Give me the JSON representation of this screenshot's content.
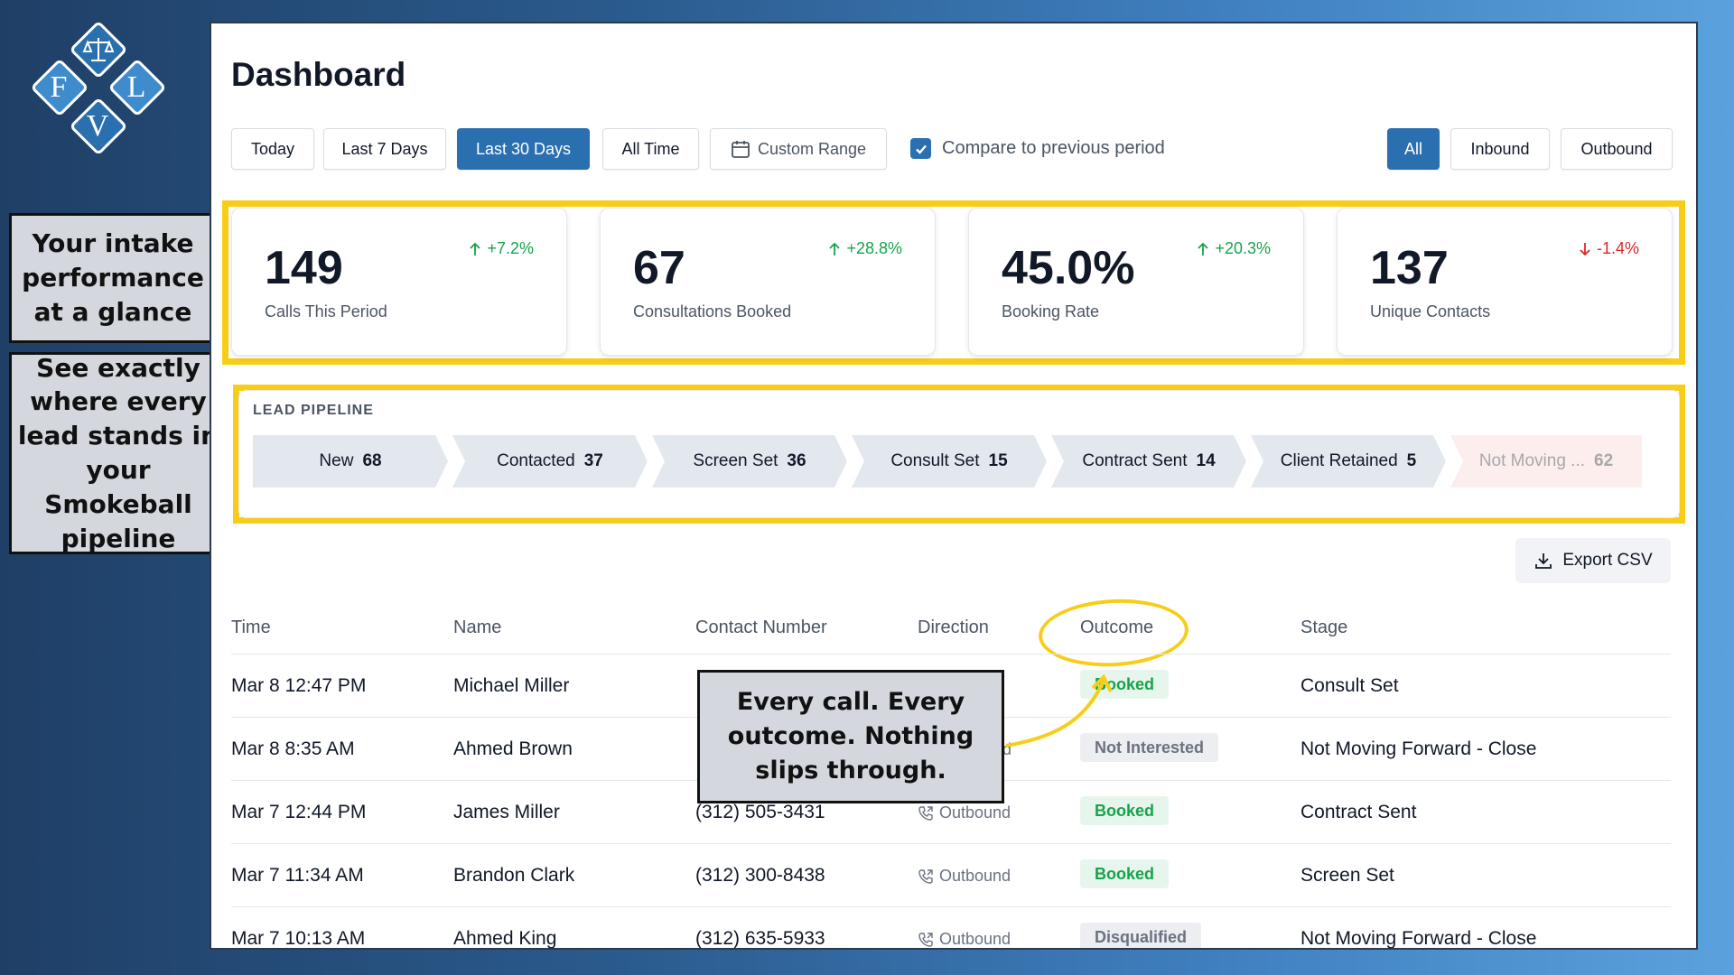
{
  "logo": {
    "letters": [
      "F",
      "L",
      "V"
    ],
    "icon": "scales-of-justice-icon",
    "colors": [
      "#2a6fae",
      "#3e8ccb",
      "#3e8ccb",
      "#2a6fae"
    ]
  },
  "callouts": {
    "kpi": "Your intake performance at a glance",
    "pipeline": "See exactly where every lead stands in your Smokeball pipeline",
    "table": "Every call. Every outcome. Nothing slips through."
  },
  "header": {
    "title": "Dashboard"
  },
  "filters": {
    "range": [
      "Today",
      "Last 7 Days",
      "Last 30 Days",
      "All Time"
    ],
    "active_range": "Last 30 Days",
    "custom_range": "Custom Range",
    "compare_label": "Compare to previous period",
    "compare_checked": true,
    "direction": [
      "All",
      "Inbound",
      "Outbound"
    ],
    "active_direction": "All"
  },
  "kpis": [
    {
      "value": "149",
      "label": "Calls This Period",
      "delta": "+7.2%",
      "trend": "up"
    },
    {
      "value": "67",
      "label": "Consultations Booked",
      "delta": "+28.8%",
      "trend": "up"
    },
    {
      "value": "45.0%",
      "label": "Booking Rate",
      "delta": "+20.3%",
      "trend": "up"
    },
    {
      "value": "137",
      "label": "Unique Contacts",
      "delta": "-1.4%",
      "trend": "down"
    }
  ],
  "pipeline": {
    "title": "LEAD PIPELINE",
    "stages": [
      {
        "name": "New",
        "count": "68"
      },
      {
        "name": "Contacted",
        "count": "37"
      },
      {
        "name": "Screen Set",
        "count": "36"
      },
      {
        "name": "Consult Set",
        "count": "15"
      },
      {
        "name": "Contract Sent",
        "count": "14"
      },
      {
        "name": "Client Retained",
        "count": "5"
      },
      {
        "name": "Not Moving ...",
        "count": "62"
      }
    ]
  },
  "export_label": "Export CSV",
  "table": {
    "headers": [
      "Time",
      "Name",
      "Contact Number",
      "Direction",
      "Outcome",
      "Stage"
    ],
    "rows": [
      {
        "time": "Mar 8 12:47 PM",
        "name": "Michael Miller",
        "number": "",
        "direction": "",
        "outcome": "Booked",
        "stage": "Consult Set"
      },
      {
        "time": "Mar 8 8:35 AM",
        "name": "Ahmed Brown",
        "number": "",
        "direction": "d",
        "outcome": "Not Interested",
        "stage": "Not Moving Forward - Close"
      },
      {
        "time": "Mar 7 12:44 PM",
        "name": "James Miller",
        "number": "(312) 505-3431",
        "direction": "Outbound",
        "outcome": "Booked",
        "stage": "Contract Sent"
      },
      {
        "time": "Mar 7 11:34 AM",
        "name": "Brandon Clark",
        "number": "(312) 300-8438",
        "direction": "Outbound",
        "outcome": "Booked",
        "stage": "Screen Set"
      },
      {
        "time": "Mar 7 10:13 AM",
        "name": "Ahmed King",
        "number": "(312) 635-5933",
        "direction": "Outbound",
        "outcome": "Disqualified",
        "stage": "Not Moving Forward - Close"
      }
    ]
  },
  "colors": {
    "accent": "#2a70b0",
    "highlight": "#f7cd18",
    "positive": "#16a34a",
    "negative": "#dc2626",
    "booked_bg": "#e7f6ec",
    "neutral_badge_bg": "#eceef1"
  }
}
